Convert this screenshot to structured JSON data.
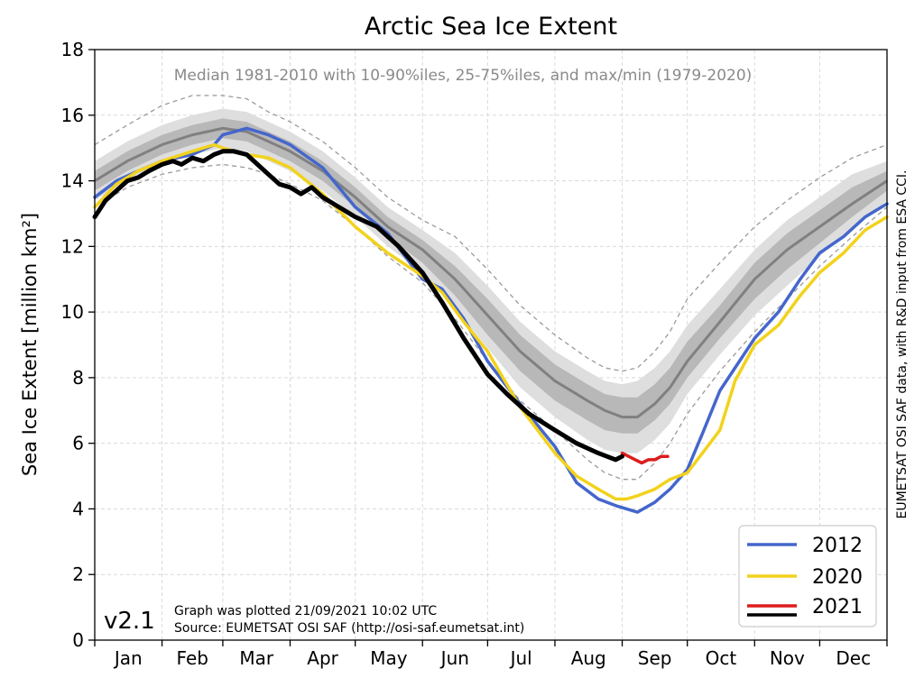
{
  "chart_data": {
    "type": "line",
    "title": "Arctic Sea Ice Extent",
    "subtitle": "Median 1981-2010 with 10-90%iles, 25-75%iles, and max/min (1979-2020)",
    "ylabel": "Sea Ice Extent [million km²]",
    "xlabel": "",
    "ylim": [
      0,
      18
    ],
    "xlim": [
      0,
      365
    ],
    "yticks": [
      0,
      2,
      4,
      6,
      8,
      10,
      12,
      14,
      16,
      18
    ],
    "month_labels": [
      "Jan",
      "Feb",
      "Mar",
      "Apr",
      "May",
      "Jun",
      "Jul",
      "Aug",
      "Sep",
      "Oct",
      "Nov",
      "Dec"
    ],
    "month_starts": [
      0,
      31,
      59,
      90,
      120,
      151,
      181,
      212,
      243,
      273,
      304,
      334,
      365
    ],
    "grid": true,
    "legend_position": "bottom-right",
    "climatology": {
      "day": [
        0,
        15,
        31,
        45,
        59,
        70,
        80,
        90,
        105,
        120,
        135,
        151,
        166,
        181,
        196,
        212,
        227,
        235,
        243,
        250,
        258,
        265,
        273,
        288,
        304,
        319,
        334,
        349,
        365
      ],
      "median": [
        14.0,
        14.6,
        15.1,
        15.4,
        15.6,
        15.5,
        15.2,
        14.9,
        14.3,
        13.5,
        12.6,
        11.9,
        11.0,
        9.9,
        8.8,
        7.9,
        7.3,
        7.0,
        6.8,
        6.8,
        7.2,
        7.7,
        8.5,
        9.7,
        11.0,
        11.9,
        12.6,
        13.3,
        14.0
      ],
      "p25": [
        13.7,
        14.3,
        14.8,
        15.1,
        15.3,
        15.2,
        14.9,
        14.6,
        14.0,
        13.2,
        12.3,
        11.5,
        10.5,
        9.3,
        8.2,
        7.3,
        6.7,
        6.4,
        6.3,
        6.3,
        6.7,
        7.2,
        8.0,
        9.2,
        10.4,
        11.3,
        12.1,
        12.9,
        13.7
      ],
      "p75": [
        14.3,
        14.9,
        15.4,
        15.7,
        15.9,
        15.8,
        15.5,
        15.2,
        14.6,
        13.8,
        12.9,
        12.2,
        11.4,
        10.4,
        9.3,
        8.4,
        7.8,
        7.5,
        7.4,
        7.4,
        7.8,
        8.3,
        9.1,
        10.2,
        11.5,
        12.4,
        13.1,
        13.8,
        14.3
      ],
      "p10": [
        13.4,
        14.0,
        14.5,
        14.8,
        15.0,
        14.9,
        14.6,
        14.3,
        13.7,
        12.9,
        12.0,
        11.2,
        10.1,
        8.9,
        7.7,
        6.8,
        6.1,
        5.8,
        5.7,
        5.7,
        6.1,
        6.6,
        7.5,
        8.7,
        9.9,
        10.8,
        11.7,
        12.5,
        13.4
      ],
      "p90": [
        14.6,
        15.2,
        15.7,
        16.0,
        16.2,
        16.1,
        15.8,
        15.5,
        14.9,
        14.1,
        13.2,
        12.5,
        11.8,
        10.8,
        9.7,
        8.8,
        8.2,
        7.9,
        7.8,
        7.9,
        8.3,
        8.8,
        9.6,
        10.7,
        11.9,
        12.8,
        13.5,
        14.2,
        14.6
      ],
      "min": [
        13.2,
        13.8,
        14.2,
        14.4,
        14.5,
        14.4,
        14.2,
        13.9,
        13.4,
        12.6,
        11.7,
        10.9,
        9.8,
        8.5,
        7.3,
        6.4,
        5.5,
        5.1,
        4.9,
        4.9,
        5.4,
        6.0,
        6.9,
        8.2,
        9.4,
        10.4,
        11.4,
        12.3,
        13.2
      ],
      "max": [
        15.1,
        15.7,
        16.3,
        16.6,
        16.6,
        16.5,
        16.1,
        15.8,
        15.2,
        14.4,
        13.5,
        12.8,
        12.3,
        11.3,
        10.2,
        9.3,
        8.6,
        8.3,
        8.2,
        8.3,
        8.8,
        9.4,
        10.4,
        11.5,
        12.6,
        13.4,
        14.1,
        14.7,
        15.1
      ]
    },
    "series": [
      {
        "name": "2012",
        "color": "#4466cc",
        "x": [
          0,
          10,
          20,
          31,
          45,
          55,
          59,
          70,
          80,
          90,
          105,
          120,
          135,
          151,
          160,
          170,
          181,
          196,
          212,
          222,
          232,
          240,
          245,
          250,
          258,
          265,
          273,
          280,
          288,
          295,
          304,
          315,
          325,
          334,
          345,
          355,
          365
        ],
        "y": [
          13.5,
          14.0,
          14.3,
          14.6,
          14.8,
          15.1,
          15.4,
          15.6,
          15.4,
          15.1,
          14.4,
          13.2,
          12.4,
          11.0,
          10.7,
          9.8,
          8.5,
          7.2,
          5.9,
          4.8,
          4.3,
          4.1,
          4.0,
          3.9,
          4.2,
          4.6,
          5.2,
          6.3,
          7.6,
          8.3,
          9.2,
          10.0,
          11.0,
          11.8,
          12.3,
          12.9,
          13.3
        ]
      },
      {
        "name": "2020",
        "color": "#f2d21c",
        "x": [
          0,
          10,
          20,
          31,
          45,
          55,
          59,
          70,
          80,
          90,
          105,
          120,
          135,
          151,
          160,
          170,
          181,
          196,
          212,
          222,
          232,
          240,
          245,
          250,
          258,
          265,
          273,
          280,
          288,
          295,
          304,
          315,
          325,
          334,
          345,
          355,
          365
        ],
        "y": [
          13.2,
          13.9,
          14.3,
          14.6,
          14.9,
          15.1,
          15.0,
          14.8,
          14.7,
          14.4,
          13.6,
          12.6,
          11.8,
          11.1,
          10.6,
          9.7,
          8.8,
          7.1,
          5.7,
          5.0,
          4.6,
          4.3,
          4.3,
          4.4,
          4.6,
          4.9,
          5.1,
          5.7,
          6.4,
          7.9,
          9.0,
          9.6,
          10.5,
          11.2,
          11.8,
          12.5,
          12.9
        ]
      },
      {
        "name": "2021",
        "color": "#dd1c1c",
        "x": [
          243,
          246,
          249,
          252,
          255,
          258,
          261,
          264
        ],
        "y": [
          5.7,
          5.6,
          5.5,
          5.4,
          5.5,
          5.5,
          5.6,
          5.6
        ]
      },
      {
        "name": "2021",
        "color": "#000000",
        "x": [
          0,
          5,
          10,
          15,
          20,
          25,
          31,
          36,
          40,
          45,
          50,
          55,
          59,
          64,
          70,
          75,
          80,
          85,
          90,
          95,
          100,
          105,
          110,
          120,
          130,
          140,
          151,
          160,
          170,
          181,
          190,
          200,
          212,
          222,
          232,
          240,
          243
        ],
        "y": [
          12.9,
          13.4,
          13.7,
          14.0,
          14.1,
          14.3,
          14.5,
          14.6,
          14.5,
          14.7,
          14.6,
          14.8,
          14.9,
          14.9,
          14.8,
          14.5,
          14.2,
          13.9,
          13.8,
          13.6,
          13.8,
          13.5,
          13.3,
          12.9,
          12.6,
          12.0,
          11.2,
          10.3,
          9.2,
          8.1,
          7.5,
          6.9,
          6.4,
          6.0,
          5.7,
          5.5,
          5.6
        ]
      }
    ],
    "legend": [
      {
        "label": "2012",
        "color": "#4466cc"
      },
      {
        "label": "2020",
        "color": "#f2d21c"
      },
      {
        "label": "2021",
        "color": "#dd1c1c"
      },
      {
        "label": "2021",
        "color": "#000000"
      }
    ]
  },
  "version_label": "v2.1",
  "footnote_line1": "Graph was plotted 21/09/2021 10:02 UTC",
  "footnote_line2": "Source: EUMETSAT OSI SAF (http://osi-saf.eumetsat.int)",
  "side_credit": "EUMETSAT OSI SAF data, with R&D input from ESA CCI."
}
